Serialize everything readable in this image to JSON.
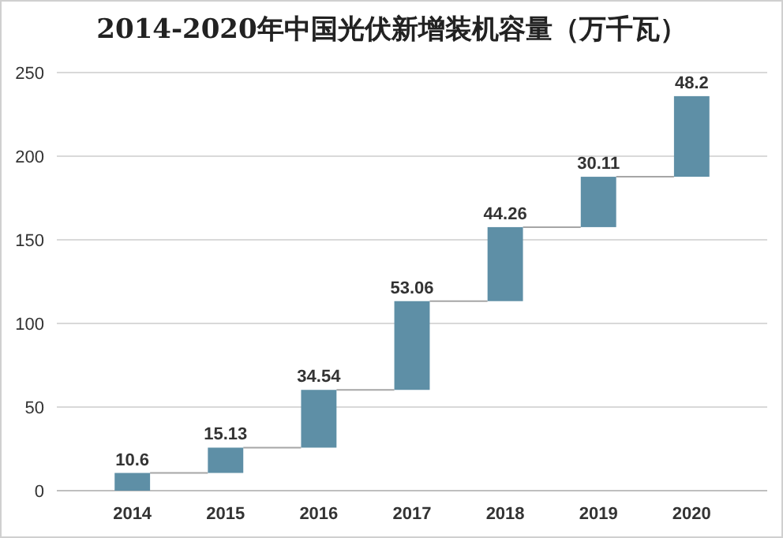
{
  "chart_data": {
    "type": "bar",
    "title": "2014-2020年中国光伏新增装机容量（万千瓦）",
    "categories": [
      "2014",
      "2015",
      "2016",
      "2017",
      "2018",
      "2019",
      "2020"
    ],
    "values": [
      10.6,
      15.13,
      34.54,
      53.06,
      44.26,
      30.11,
      48.2
    ],
    "base": [
      0,
      10.6,
      25.73,
      60.27,
      113.33,
      157.59,
      187.7
    ],
    "color": "#5e8fa6",
    "ylim": [
      0,
      250
    ],
    "yticks": [
      0,
      50,
      100,
      150,
      200,
      250
    ],
    "grid": "y",
    "data_labels": true
  }
}
